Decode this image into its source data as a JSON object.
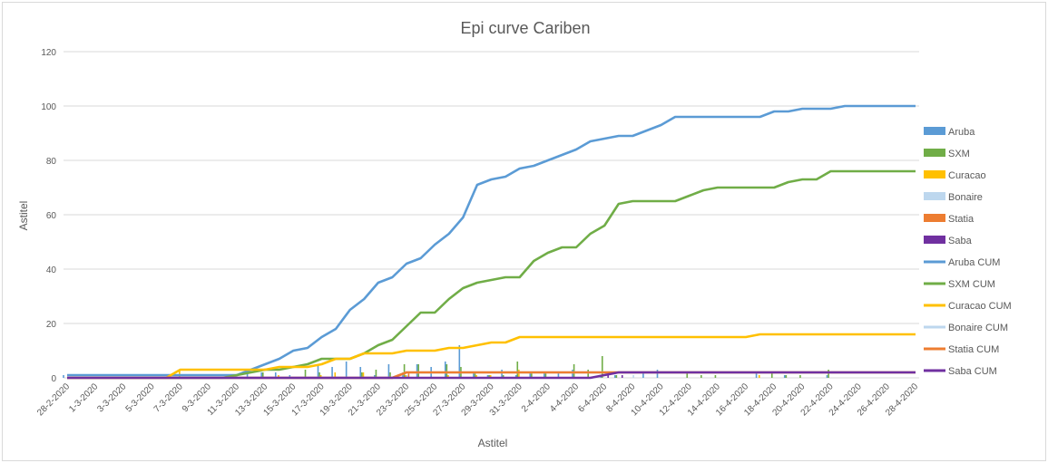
{
  "chart_data": {
    "type": "line",
    "title": "Epi curve Cariben",
    "xlabel": "Astitel",
    "ylabel": "Astitel",
    "ylim": [
      0,
      120
    ],
    "yticks": [
      0,
      20,
      40,
      60,
      80,
      100,
      120
    ],
    "grid": true,
    "legend_position": "right",
    "x_tick_labels": [
      "28-2-2020",
      "1-3-2020",
      "3-3-2020",
      "5-3-2020",
      "7-3-2020",
      "9-3-2020",
      "11-3-2020",
      "13-3-2020",
      "15-3-2020",
      "17-3-2020",
      "19-3-2020",
      "21-3-2020",
      "23-3-2020",
      "25-3-2020",
      "27-3-2020",
      "29-3-2020",
      "31-3-2020",
      "2-4-2020",
      "4-4-2020",
      "6-4-2020",
      "8-4-2020",
      "10-4-2020",
      "12-4-2020",
      "14-4-2020",
      "16-4-2020",
      "18-4-2020",
      "20-4-2020",
      "22-4-2020",
      "24-4-2020",
      "26-4-2020",
      "28-4-2020"
    ],
    "x": [
      "28-2-2020",
      "29-2-2020",
      "1-3-2020",
      "2-3-2020",
      "3-3-2020",
      "4-3-2020",
      "5-3-2020",
      "6-3-2020",
      "7-3-2020",
      "8-3-2020",
      "9-3-2020",
      "10-3-2020",
      "11-3-2020",
      "12-3-2020",
      "13-3-2020",
      "14-3-2020",
      "15-3-2020",
      "16-3-2020",
      "17-3-2020",
      "18-3-2020",
      "19-3-2020",
      "20-3-2020",
      "21-3-2020",
      "22-3-2020",
      "23-3-2020",
      "24-3-2020",
      "25-3-2020",
      "26-3-2020",
      "27-3-2020",
      "28-3-2020",
      "29-3-2020",
      "30-3-2020",
      "31-3-2020",
      "1-4-2020",
      "2-4-2020",
      "3-4-2020",
      "4-4-2020",
      "5-4-2020",
      "6-4-2020",
      "7-4-2020",
      "8-4-2020",
      "9-4-2020",
      "10-4-2020",
      "11-4-2020",
      "12-4-2020",
      "13-4-2020",
      "14-4-2020",
      "15-4-2020",
      "16-4-2020",
      "17-4-2020",
      "18-4-2020",
      "19-4-2020",
      "20-4-2020",
      "21-4-2020",
      "22-4-2020",
      "23-4-2020",
      "24-4-2020",
      "25-4-2020",
      "26-4-2020",
      "27-4-2020",
      "28-4-2020"
    ],
    "bar_series": [
      {
        "name": "Aruba",
        "color": "#5b9bd5",
        "values": [
          1,
          0,
          0,
          0,
          0,
          0,
          0,
          0,
          0,
          0,
          0,
          0,
          0,
          2,
          2,
          2,
          1,
          0,
          5,
          4,
          6,
          4,
          1,
          5,
          2,
          5,
          4,
          6,
          12,
          2,
          1,
          3,
          1,
          2,
          2,
          2,
          3,
          0,
          1,
          1,
          0,
          2,
          3,
          0,
          0,
          0,
          0,
          0,
          0,
          2,
          0,
          1,
          0,
          0,
          1,
          0,
          0,
          0,
          0,
          0,
          0
        ]
      },
      {
        "name": "SXM",
        "color": "#70ad47",
        "values": [
          0,
          0,
          0,
          0,
          0,
          0,
          0,
          0,
          0,
          0,
          0,
          0,
          0,
          0,
          2,
          0,
          0,
          3,
          2,
          0,
          0,
          2,
          3,
          2,
          5,
          5,
          0,
          5,
          4,
          2,
          1,
          1,
          6,
          2,
          2,
          0,
          5,
          3,
          8,
          1,
          0,
          0,
          0,
          0,
          2,
          1,
          1,
          0,
          0,
          0,
          2,
          1,
          1,
          0,
          3,
          0,
          0,
          0,
          0,
          0,
          0
        ]
      },
      {
        "name": "Curacao",
        "color": "#ffc000",
        "values": [
          0,
          0,
          0,
          0,
          0,
          0,
          0,
          0,
          3,
          0,
          0,
          0,
          0,
          0,
          0,
          1,
          0,
          0,
          1,
          2,
          0,
          2,
          0,
          0,
          1,
          0,
          0,
          1,
          0,
          1,
          1,
          0,
          3,
          0,
          0,
          0,
          0,
          0,
          0,
          0,
          0,
          0,
          0,
          0,
          0,
          0,
          0,
          0,
          0,
          1,
          0,
          0,
          0,
          0,
          0,
          0,
          0,
          0,
          0,
          0,
          0
        ]
      },
      {
        "name": "Bonaire",
        "color": "#bdd7ee",
        "values": [
          0,
          0,
          0,
          0,
          0,
          0,
          0,
          0,
          0,
          0,
          0,
          0,
          0,
          0,
          0,
          0,
          0,
          0,
          0,
          0,
          0,
          0,
          0,
          0,
          1,
          0,
          0,
          0,
          0,
          0,
          0,
          0,
          0,
          0,
          0,
          0,
          0,
          0,
          0,
          0,
          1,
          0,
          0,
          0,
          0,
          0,
          0,
          0,
          0,
          0,
          0,
          0,
          0,
          0,
          0,
          0,
          0,
          0,
          0,
          0,
          0
        ]
      },
      {
        "name": "Statia",
        "color": "#ed7d31",
        "values": [
          0,
          0,
          0,
          0,
          0,
          0,
          0,
          0,
          0,
          0,
          0,
          0,
          0,
          0,
          0,
          0,
          0,
          0,
          0,
          0,
          0,
          0,
          0,
          0,
          2,
          0,
          0,
          0,
          0,
          0,
          0,
          0,
          0,
          0,
          0,
          0,
          0,
          0,
          0,
          0,
          0,
          0,
          0,
          0,
          0,
          0,
          0,
          0,
          0,
          0,
          0,
          0,
          0,
          0,
          0,
          0,
          0,
          0,
          0,
          0,
          0
        ]
      },
      {
        "name": "Saba",
        "color": "#7030a0",
        "values": [
          0,
          0,
          0,
          0,
          0,
          0,
          0,
          0,
          0,
          0,
          0,
          0,
          0,
          0,
          0,
          0,
          0,
          0,
          0,
          0,
          0,
          0,
          0,
          0,
          0,
          0,
          0,
          0,
          0,
          0,
          0,
          0,
          0,
          0,
          0,
          0,
          0,
          0,
          1,
          1,
          0,
          0,
          0,
          0,
          0,
          0,
          0,
          0,
          0,
          0,
          0,
          0,
          0,
          0,
          0,
          0,
          0,
          0,
          0,
          0,
          0
        ]
      }
    ],
    "line_series": [
      {
        "name": "Aruba CUM",
        "color": "#5b9bd5",
        "values": [
          1,
          1,
          1,
          1,
          1,
          1,
          1,
          1,
          1,
          1,
          1,
          1,
          1,
          3,
          5,
          7,
          10,
          11,
          15,
          18,
          25,
          29,
          35,
          37,
          42,
          44,
          49,
          53,
          59,
          71,
          73,
          74,
          77,
          78,
          80,
          82,
          84,
          87,
          88,
          89,
          89,
          91,
          93,
          96,
          96,
          96,
          96,
          96,
          96,
          96,
          98,
          98,
          99,
          99,
          99,
          100,
          100,
          100,
          100,
          100,
          100
        ]
      },
      {
        "name": "SXM CUM",
        "color": "#70ad47",
        "values": [
          0,
          0,
          0,
          0,
          0,
          0,
          0,
          0,
          0,
          0,
          0,
          0,
          1,
          2,
          3,
          3,
          4,
          5,
          7,
          7,
          7,
          9,
          12,
          14,
          19,
          24,
          24,
          29,
          33,
          35,
          36,
          37,
          37,
          43,
          46,
          48,
          48,
          53,
          56,
          64,
          65,
          65,
          65,
          65,
          67,
          69,
          70,
          70,
          70,
          70,
          70,
          72,
          73,
          73,
          76,
          76,
          76,
          76,
          76,
          76,
          76
        ]
      },
      {
        "name": "Curacao CUM",
        "color": "#ffc000",
        "values": [
          0,
          0,
          0,
          0,
          0,
          0,
          0,
          0,
          3,
          3,
          3,
          3,
          3,
          3,
          3,
          4,
          4,
          4,
          5,
          7,
          7,
          9,
          9,
          9,
          10,
          10,
          10,
          11,
          11,
          12,
          13,
          13,
          15,
          15,
          15,
          15,
          15,
          15,
          15,
          15,
          15,
          15,
          15,
          15,
          15,
          15,
          15,
          15,
          15,
          16,
          16,
          16,
          16,
          16,
          16,
          16,
          16,
          16,
          16,
          16,
          16
        ]
      },
      {
        "name": "Bonaire CUM",
        "color": "#bdd7ee",
        "values": [
          0,
          0,
          0,
          0,
          0,
          0,
          0,
          0,
          0,
          0,
          0,
          0,
          0,
          0,
          0,
          0,
          0,
          0,
          0,
          0,
          0,
          0,
          0,
          0,
          2,
          2,
          2,
          2,
          2,
          2,
          2,
          2,
          2,
          2,
          2,
          2,
          2,
          2,
          2,
          2,
          2,
          2,
          2,
          2,
          2,
          2,
          2,
          2,
          2,
          2,
          2,
          2,
          2,
          2,
          2,
          2,
          2,
          2,
          2,
          2,
          2
        ]
      },
      {
        "name": "Statia CUM",
        "color": "#ed7d31",
        "values": [
          0,
          0,
          0,
          0,
          0,
          0,
          0,
          0,
          0,
          0,
          0,
          0,
          0,
          0,
          0,
          0,
          0,
          0,
          0,
          0,
          0,
          0,
          0,
          0,
          2,
          2,
          2,
          2,
          2,
          2,
          2,
          2,
          2,
          2,
          2,
          2,
          2,
          2,
          2,
          2,
          2,
          2,
          2,
          2,
          2,
          2,
          2,
          2,
          2,
          2,
          2,
          2,
          2,
          2,
          2,
          2,
          2,
          2,
          2,
          2,
          2
        ]
      },
      {
        "name": "Saba CUM",
        "color": "#7030a0",
        "values": [
          0,
          0,
          0,
          0,
          0,
          0,
          0,
          0,
          0,
          0,
          0,
          0,
          0,
          0,
          0,
          0,
          0,
          0,
          0,
          0,
          0,
          0,
          0,
          0,
          0,
          0,
          0,
          0,
          0,
          0,
          0,
          0,
          0,
          0,
          0,
          0,
          0,
          0,
          1,
          2,
          2,
          2,
          2,
          2,
          2,
          2,
          2,
          2,
          2,
          2,
          2,
          2,
          2,
          2,
          2,
          2,
          2,
          2,
          2,
          2,
          2
        ]
      }
    ]
  }
}
